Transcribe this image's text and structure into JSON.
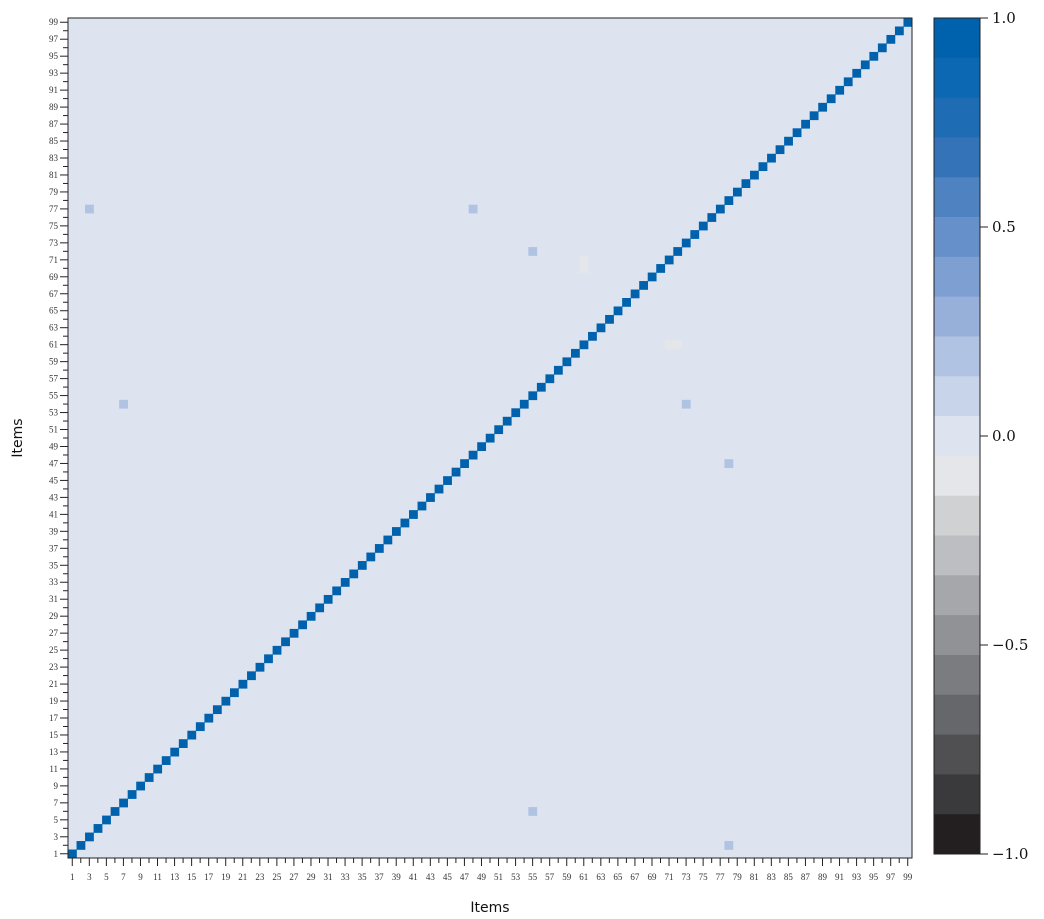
{
  "chart_data": {
    "type": "heatmap",
    "xlabel": "Items",
    "ylabel": "Items",
    "n": 99,
    "x_ticks": [
      "1",
      "3",
      "5",
      "7",
      "9",
      "11",
      "13",
      "15",
      "17",
      "19",
      "21",
      "23",
      "25",
      "27",
      "29",
      "31",
      "33",
      "35",
      "37",
      "39",
      "41",
      "43",
      "45",
      "47",
      "49",
      "51",
      "53",
      "55",
      "57",
      "59",
      "61",
      "63",
      "65",
      "67",
      "69",
      "71",
      "73",
      "75",
      "77",
      "79",
      "81",
      "83",
      "85",
      "87",
      "89",
      "91",
      "93",
      "95",
      "97",
      "99"
    ],
    "y_ticks": [
      "1",
      "3",
      "5",
      "7",
      "9",
      "11",
      "13",
      "15",
      "17",
      "19",
      "21",
      "23",
      "25",
      "27",
      "29",
      "31",
      "33",
      "35",
      "37",
      "39",
      "41",
      "43",
      "45",
      "47",
      "49",
      "51",
      "53",
      "55",
      "57",
      "59",
      "61",
      "63",
      "65",
      "67",
      "69",
      "71",
      "73",
      "75",
      "77",
      "79",
      "81",
      "83",
      "85",
      "87",
      "89",
      "91",
      "93",
      "95",
      "97",
      "99"
    ],
    "diagonal_value": 1.0,
    "background_value": 0.0,
    "notable_cells": [
      {
        "x": 3,
        "y": 77,
        "value": 0.2
      },
      {
        "x": 48,
        "y": 77,
        "value": 0.2
      },
      {
        "x": 7,
        "y": 54,
        "value": 0.2
      },
      {
        "x": 55,
        "y": 72,
        "value": 0.2
      },
      {
        "x": 55,
        "y": 6,
        "value": 0.2
      },
      {
        "x": 73,
        "y": 54,
        "value": 0.2
      },
      {
        "x": 78,
        "y": 47,
        "value": 0.2
      },
      {
        "x": 78,
        "y": 2,
        "value": 0.2
      },
      {
        "x": 61,
        "y": 71,
        "value": -0.15
      },
      {
        "x": 61,
        "y": 70,
        "value": -0.15
      },
      {
        "x": 71,
        "y": 61,
        "value": -0.15
      },
      {
        "x": 72,
        "y": 61,
        "value": -0.15
      }
    ],
    "colorbar": {
      "range": [
        -1.0,
        1.0
      ],
      "tick_labels": [
        "1.0",
        "0.5",
        "0.0",
        "−0.5",
        "−1.0"
      ],
      "tick_values": [
        1.0,
        0.5,
        0.0,
        -0.5,
        -1.0
      ],
      "colors": [
        "#231f20",
        "#3a3a3c",
        "#505052",
        "#66676a",
        "#7b7c80",
        "#909296",
        "#a5a7ab",
        "#bcbec2",
        "#d0d1d3",
        "#e4e6ea",
        "#dde4f0",
        "#c8d4ea",
        "#b0c3e3",
        "#97b0da",
        "#7e9fd2",
        "#6690ca",
        "#4e82c1",
        "#3473b7",
        "#1d6cb4",
        "#0c68b3",
        "#0062ad"
      ]
    }
  }
}
